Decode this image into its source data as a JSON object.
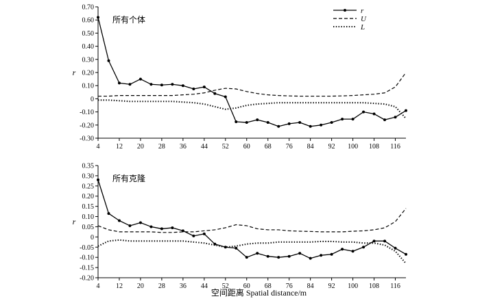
{
  "chart_data": [
    {
      "type": "line",
      "title": "所有个体",
      "ylabel": "r",
      "ylim": [
        -0.3,
        0.7
      ],
      "yticks": [
        "0.70",
        "0.60",
        "0.50",
        "0.40",
        "0.30",
        "0.20",
        "0.10",
        "0",
        "-0.10",
        "-0.20",
        "-0.30"
      ],
      "xticks": [
        "4",
        "12",
        "20",
        "28",
        "36",
        "44",
        "52",
        "60",
        "68",
        "76",
        "84",
        "92",
        "100",
        "108",
        "116"
      ],
      "xlim": [
        4,
        120
      ],
      "legend": {
        "placement": "top-right",
        "entries": [
          "r",
          "U",
          "L"
        ]
      },
      "series": [
        {
          "name": "r",
          "style": "solid-marker",
          "x": [
            4,
            8,
            12,
            16,
            20,
            24,
            28,
            32,
            36,
            40,
            44,
            48,
            52,
            56,
            60,
            64,
            68,
            72,
            76,
            80,
            84,
            88,
            92,
            96,
            100,
            104,
            108,
            112,
            116,
            120
          ],
          "y": [
            0.62,
            0.29,
            0.12,
            0.11,
            0.15,
            0.11,
            0.105,
            0.11,
            0.1,
            0.075,
            0.09,
            0.04,
            0.015,
            -0.175,
            -0.18,
            -0.16,
            -0.18,
            -0.21,
            -0.19,
            -0.18,
            -0.21,
            -0.2,
            -0.18,
            -0.155,
            -0.155,
            -0.1,
            -0.115,
            -0.16,
            -0.14,
            -0.09
          ]
        },
        {
          "name": "U",
          "style": "dashed",
          "x": [
            4,
            8,
            12,
            16,
            20,
            24,
            28,
            32,
            36,
            40,
            44,
            48,
            52,
            56,
            60,
            64,
            68,
            72,
            76,
            80,
            84,
            88,
            92,
            96,
            100,
            104,
            108,
            112,
            116,
            120
          ],
          "y": [
            0.02,
            0.02,
            0.025,
            0.025,
            0.025,
            0.025,
            0.025,
            0.025,
            0.03,
            0.035,
            0.045,
            0.065,
            0.08,
            0.075,
            0.055,
            0.04,
            0.03,
            0.025,
            0.022,
            0.02,
            0.02,
            0.02,
            0.02,
            0.022,
            0.025,
            0.03,
            0.035,
            0.045,
            0.09,
            0.2
          ]
        },
        {
          "name": "L",
          "style": "dotted",
          "x": [
            4,
            8,
            12,
            16,
            20,
            24,
            28,
            32,
            36,
            40,
            44,
            48,
            52,
            56,
            60,
            64,
            68,
            72,
            76,
            80,
            84,
            88,
            92,
            96,
            100,
            104,
            108,
            112,
            116,
            120
          ],
          "y": [
            -0.01,
            -0.01,
            -0.015,
            -0.02,
            -0.02,
            -0.02,
            -0.02,
            -0.02,
            -0.025,
            -0.03,
            -0.04,
            -0.06,
            -0.08,
            -0.07,
            -0.05,
            -0.04,
            -0.035,
            -0.03,
            -0.03,
            -0.03,
            -0.03,
            -0.03,
            -0.03,
            -0.03,
            -0.03,
            -0.03,
            -0.035,
            -0.04,
            -0.06,
            -0.15
          ]
        }
      ]
    },
    {
      "type": "line",
      "title": "所有克隆",
      "ylabel": "r",
      "ylim": [
        -0.2,
        0.35
      ],
      "yticks": [
        "0.35",
        "0.30",
        "0.25",
        "0.20",
        "0.15",
        "0.10",
        "0.05",
        "0",
        "-0.05",
        "-0.10",
        "-0.15",
        "-0.20"
      ],
      "xticks": [
        "4",
        "12",
        "20",
        "28",
        "36",
        "44",
        "52",
        "60",
        "68",
        "76",
        "84",
        "92",
        "100",
        "108",
        "116"
      ],
      "xlim": [
        4,
        120
      ],
      "xlabel": "空间距离 Spatial distance/m",
      "series": [
        {
          "name": "r",
          "style": "solid-marker",
          "x": [
            4,
            8,
            12,
            16,
            20,
            24,
            28,
            32,
            36,
            40,
            44,
            48,
            52,
            56,
            60,
            64,
            68,
            72,
            76,
            80,
            84,
            88,
            92,
            96,
            100,
            104,
            108,
            112,
            116,
            120
          ],
          "y": [
            0.28,
            0.115,
            0.08,
            0.055,
            0.07,
            0.05,
            0.04,
            0.045,
            0.03,
            0.005,
            0.015,
            -0.035,
            -0.05,
            -0.055,
            -0.1,
            -0.08,
            -0.095,
            -0.1,
            -0.095,
            -0.08,
            -0.105,
            -0.09,
            -0.085,
            -0.06,
            -0.07,
            -0.05,
            -0.02,
            -0.02,
            -0.055,
            -0.085
          ]
        },
        {
          "name": "U",
          "style": "dashed",
          "x": [
            4,
            8,
            12,
            16,
            20,
            24,
            28,
            32,
            36,
            40,
            44,
            48,
            52,
            56,
            60,
            64,
            68,
            72,
            76,
            80,
            84,
            88,
            92,
            96,
            100,
            104,
            108,
            112,
            116,
            120
          ],
          "y": [
            0.055,
            0.035,
            0.025,
            0.025,
            0.025,
            0.025,
            0.022,
            0.022,
            0.025,
            0.025,
            0.03,
            0.035,
            0.045,
            0.06,
            0.055,
            0.04,
            0.035,
            0.035,
            0.03,
            0.028,
            0.027,
            0.025,
            0.025,
            0.025,
            0.028,
            0.03,
            0.035,
            0.045,
            0.075,
            0.14
          ]
        },
        {
          "name": "L",
          "style": "dotted",
          "x": [
            4,
            8,
            12,
            16,
            20,
            24,
            28,
            32,
            36,
            40,
            44,
            48,
            52,
            56,
            60,
            64,
            68,
            72,
            76,
            80,
            84,
            88,
            92,
            96,
            100,
            104,
            108,
            112,
            116,
            120
          ],
          "y": [
            -0.045,
            -0.02,
            -0.015,
            -0.02,
            -0.02,
            -0.02,
            -0.02,
            -0.02,
            -0.02,
            -0.025,
            -0.03,
            -0.04,
            -0.05,
            -0.045,
            -0.035,
            -0.03,
            -0.03,
            -0.025,
            -0.025,
            -0.025,
            -0.025,
            -0.022,
            -0.022,
            -0.025,
            -0.025,
            -0.03,
            -0.03,
            -0.04,
            -0.07,
            -0.13
          ]
        }
      ]
    }
  ]
}
